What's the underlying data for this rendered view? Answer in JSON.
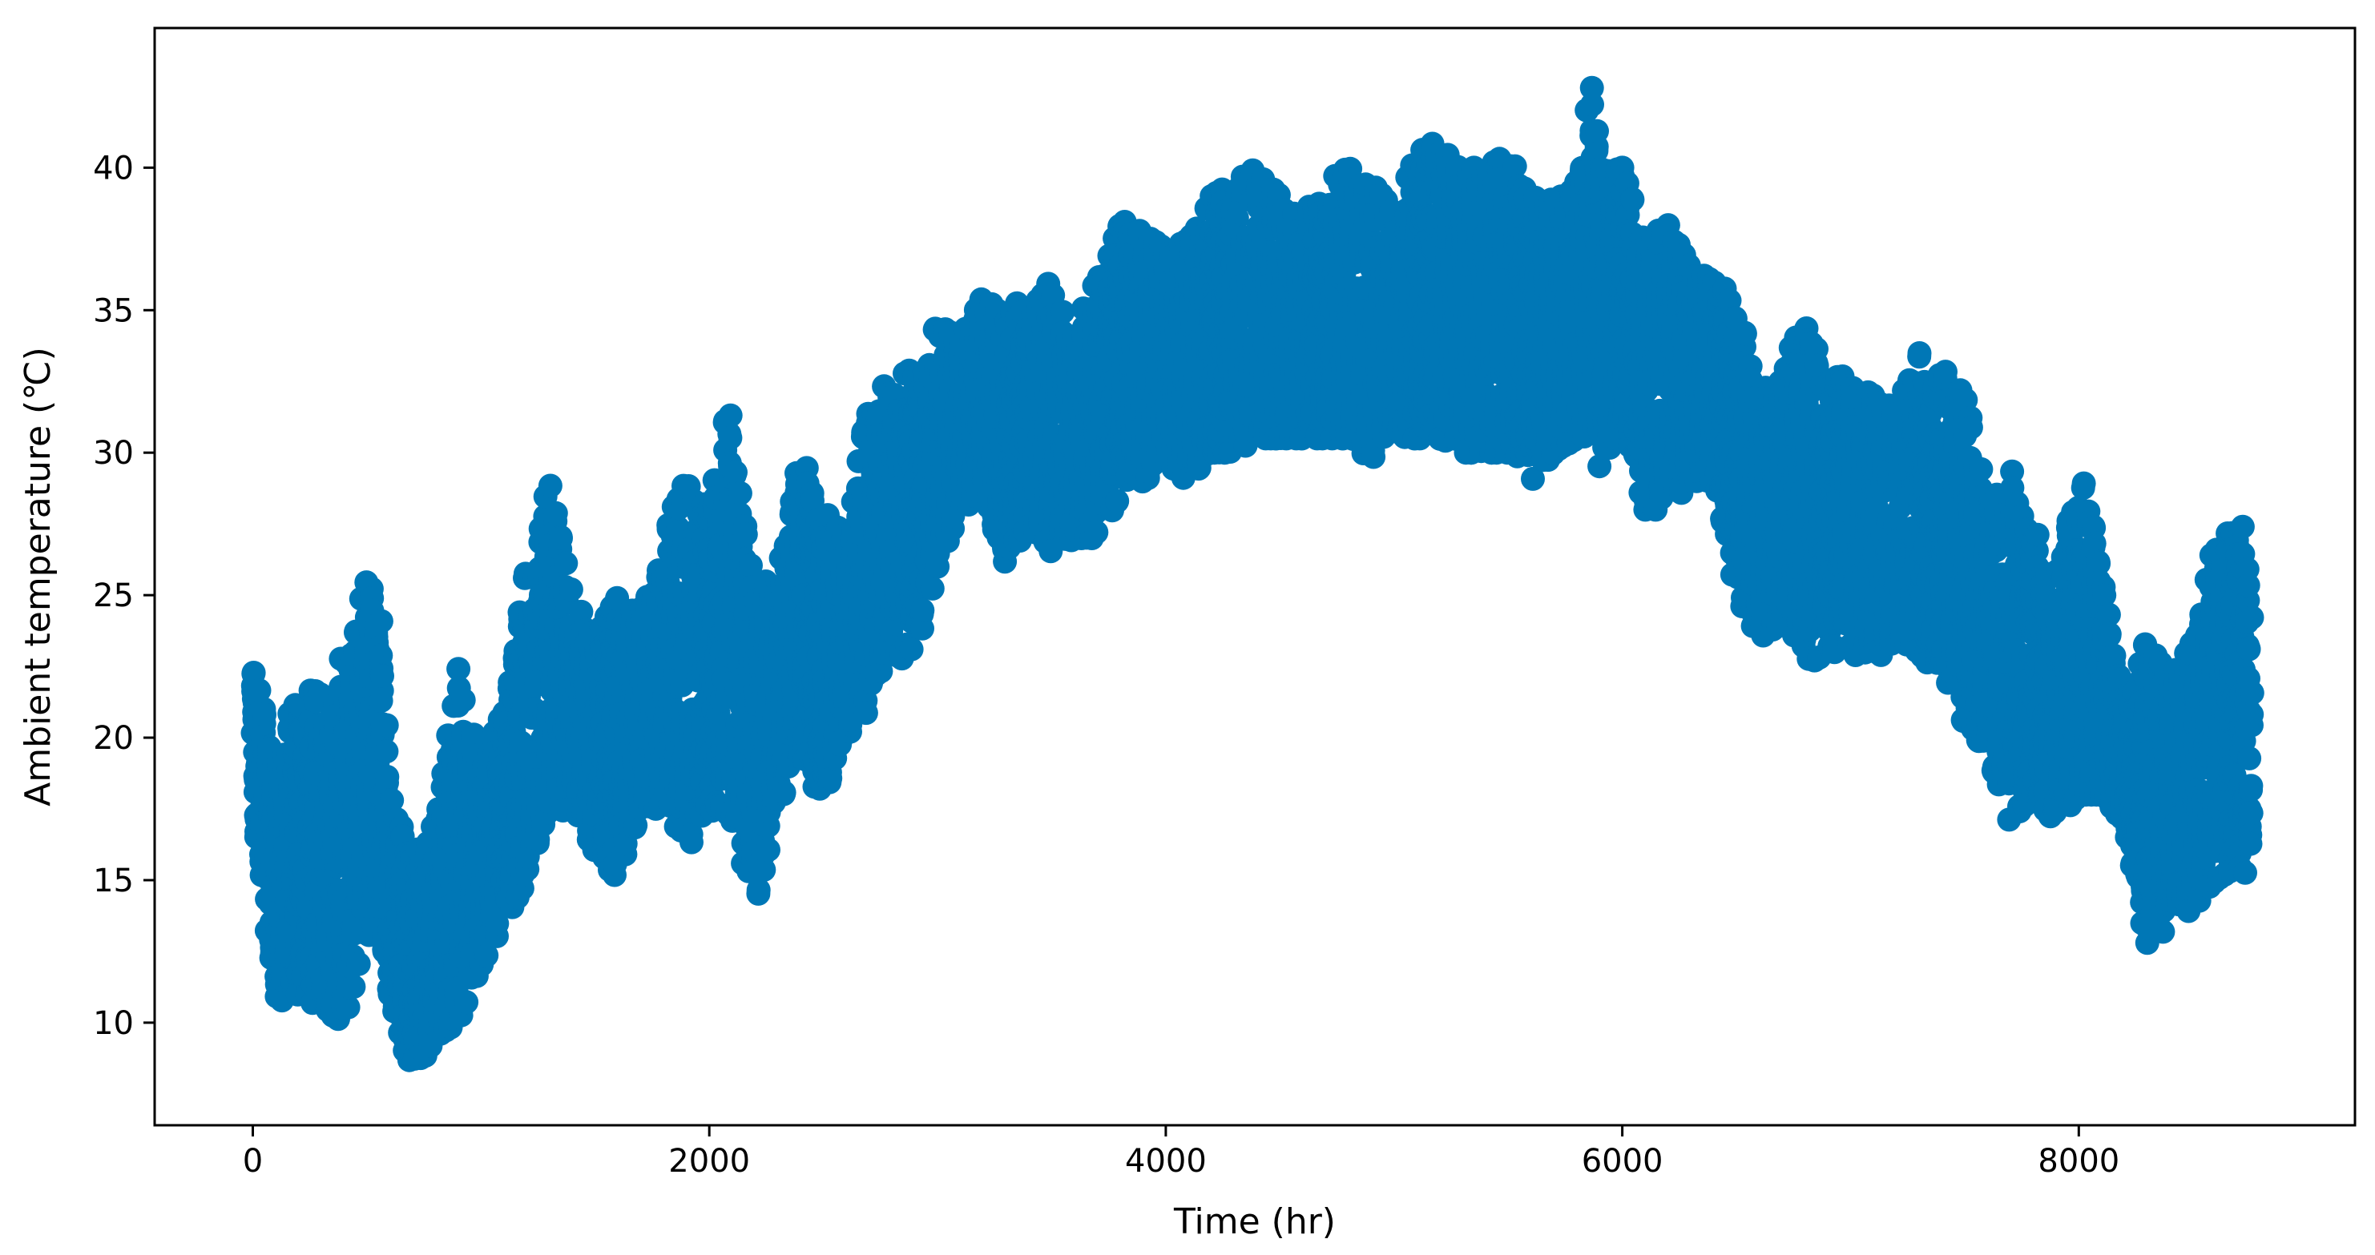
{
  "chart_data": {
    "type": "scatter",
    "xlabel": "Time (hr)",
    "ylabel": "Ambient temperature (℃)",
    "xlim": [
      -430,
      9210
    ],
    "ylim": [
      6.4,
      44.9
    ],
    "xticks": [
      0,
      2000,
      4000,
      6000,
      8000
    ],
    "yticks": [
      10,
      15,
      20,
      25,
      30,
      35,
      40
    ],
    "grid": false,
    "legend": "none",
    "color": "#0077b6",
    "series": [
      {
        "x_start": 0,
        "x_end": 8760,
        "x_step": 1,
        "envelope": {
          "x": [
            0,
            100,
            200,
            300,
            400,
            500,
            560,
            600,
            700,
            800,
            900,
            1000,
            1100,
            1200,
            1300,
            1400,
            1500,
            1600,
            1700,
            1800,
            1900,
            2000,
            2100,
            2200,
            2300,
            2400,
            2500,
            2600,
            2700,
            2800,
            2900,
            3000,
            3100,
            3200,
            3300,
            3400,
            3500,
            3600,
            3700,
            3800,
            3900,
            4000,
            4100,
            4200,
            4300,
            4400,
            4500,
            4600,
            4700,
            4800,
            4900,
            5000,
            5100,
            5200,
            5300,
            5400,
            5500,
            5600,
            5700,
            5800,
            5870,
            5900,
            6000,
            6100,
            6200,
            6300,
            6400,
            6500,
            6600,
            6700,
            6800,
            6900,
            7000,
            7100,
            7200,
            7300,
            7400,
            7500,
            7600,
            7700,
            7800,
            7900,
            8000,
            8100,
            8200,
            8300,
            8400,
            8500,
            8600,
            8700,
            8760
          ],
          "low": [
            17.5,
            10.5,
            11.0,
            10.5,
            10.0,
            13.0,
            13.5,
            11.0,
            8.0,
            9.5,
            10.0,
            12.0,
            13.5,
            15.0,
            17.0,
            17.5,
            16.0,
            15.0,
            17.5,
            17.5,
            16.0,
            17.5,
            17.0,
            14.0,
            17.5,
            19.5,
            17.5,
            20.0,
            21.0,
            23.0,
            22.5,
            26.0,
            28.0,
            28.5,
            26.0,
            27.5,
            26.5,
            27.0,
            27.0,
            28.5,
            29.0,
            29.5,
            29.0,
            30.0,
            30.0,
            30.5,
            30.5,
            30.5,
            30.5,
            30.5,
            29.5,
            30.5,
            30.5,
            30.5,
            30.0,
            30.0,
            30.0,
            29.0,
            30.0,
            30.5,
            30.0,
            29.5,
            31.0,
            28.0,
            28.0,
            29.0,
            29.0,
            25.0,
            23.5,
            24.0,
            22.5,
            23.0,
            23.0,
            22.5,
            23.5,
            23.0,
            22.0,
            20.5,
            19.5,
            17.0,
            18.0,
            17.0,
            18.0,
            18.0,
            17.0,
            12.5,
            13.5,
            14.0,
            15.0,
            15.5,
            15.0
          ],
          "high": [
            22.5,
            19.5,
            22.0,
            21.5,
            23.0,
            25.5,
            25.5,
            18.0,
            16.0,
            17.0,
            22.5,
            19.0,
            21.0,
            26.0,
            29.0,
            25.0,
            23.5,
            25.0,
            24.5,
            27.0,
            29.5,
            28.0,
            32.5,
            25.0,
            26.0,
            30.0,
            28.0,
            27.0,
            32.0,
            32.5,
            33.0,
            34.5,
            34.0,
            35.5,
            35.0,
            35.5,
            36.0,
            35.0,
            36.0,
            38.0,
            38.5,
            37.0,
            37.5,
            39.0,
            39.5,
            40.0,
            39.0,
            38.5,
            39.5,
            40.0,
            39.5,
            38.5,
            40.5,
            41.0,
            40.0,
            40.0,
            40.5,
            39.0,
            39.0,
            39.5,
            43.5,
            40.0,
            40.0,
            37.5,
            38.0,
            36.5,
            36.0,
            35.5,
            32.0,
            33.0,
            35.0,
            33.0,
            32.5,
            32.0,
            31.5,
            33.5,
            33.0,
            32.0,
            29.0,
            29.5,
            27.5,
            25.5,
            30.0,
            26.0,
            21.0,
            23.5,
            22.0,
            23.5,
            27.5,
            28.0,
            26.0
          ]
        }
      }
    ]
  }
}
